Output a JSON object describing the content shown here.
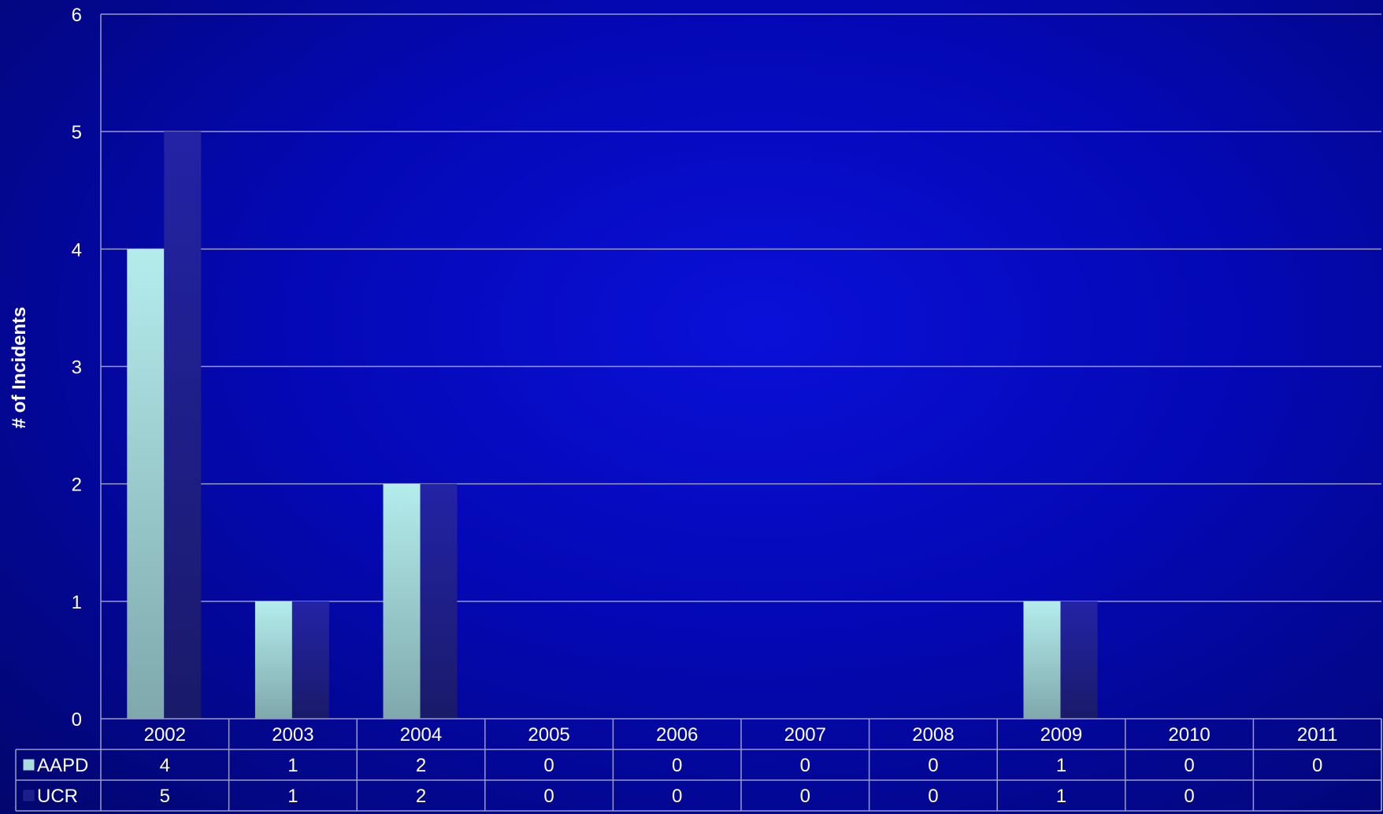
{
  "chart_data": {
    "type": "bar",
    "ylabel": "# of Incidents",
    "xlabel": "",
    "title": "",
    "ylim": [
      0,
      6
    ],
    "yticks": [
      0,
      1,
      2,
      3,
      4,
      5,
      6
    ],
    "grid": true,
    "legend": "data-table",
    "categories": [
      "2002",
      "2003",
      "2004",
      "2005",
      "2006",
      "2007",
      "2008",
      "2009",
      "2010",
      "2011"
    ],
    "series": [
      {
        "name": "AAPD",
        "color": "#a9dcdc",
        "values": [
          4,
          1,
          2,
          0,
          0,
          0,
          0,
          1,
          0,
          0
        ],
        "table_values": [
          "4",
          "1",
          "2",
          "0",
          "0",
          "0",
          "0",
          "1",
          "0",
          "0"
        ]
      },
      {
        "name": "UCR",
        "color": "#1d1d8a",
        "values": [
          5,
          1,
          2,
          0,
          0,
          0,
          0,
          1,
          0,
          null
        ],
        "table_values": [
          "5",
          "1",
          "2",
          "0",
          "0",
          "0",
          "0",
          "1",
          "0",
          ""
        ]
      }
    ],
    "colors": {
      "gridline": "#9a9ac8",
      "text": "#ffffff",
      "table_text": "#ffffcc"
    }
  }
}
